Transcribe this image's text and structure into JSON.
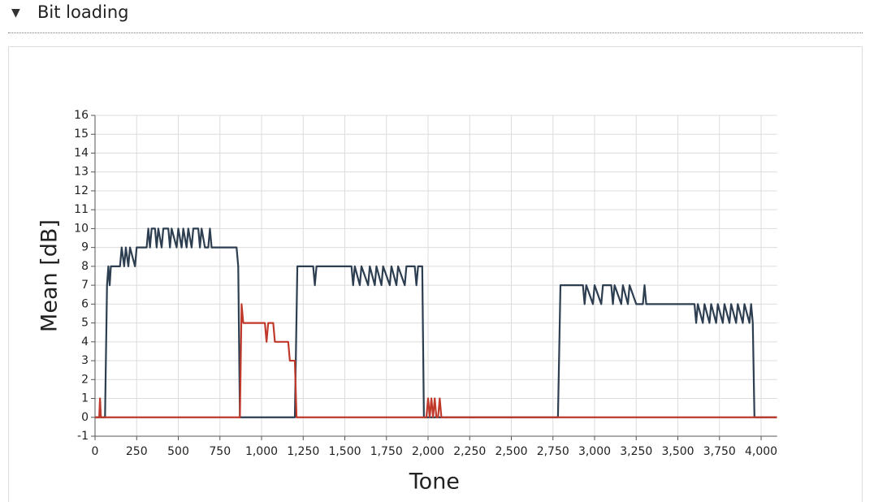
{
  "header": {
    "title": "Bit loading"
  },
  "chart_data": {
    "type": "line",
    "x_label": "Tone",
    "y_label": "Mean [dB]",
    "xlim": [
      0,
      4096
    ],
    "ylim": [
      -1,
      16
    ],
    "grid": true,
    "xticks": [
      0,
      250,
      500,
      750,
      {
        "value": 1000,
        "label": "1,000"
      },
      {
        "value": 1250,
        "label": "1,250"
      },
      {
        "value": 1500,
        "label": "1,500"
      },
      {
        "value": 1750,
        "label": "1,750"
      },
      {
        "value": 2000,
        "label": "2,000"
      },
      {
        "value": 2250,
        "label": "2,250"
      },
      {
        "value": 2500,
        "label": "2,500"
      },
      {
        "value": 2750,
        "label": "2,750"
      },
      {
        "value": 3000,
        "label": "3,000"
      },
      {
        "value": 3250,
        "label": "3,250"
      },
      {
        "value": 3500,
        "label": "3,500"
      },
      {
        "value": 3750,
        "label": "3,750"
      },
      {
        "value": 4000,
        "label": "4,000"
      }
    ],
    "yticks": [
      -1,
      0,
      1,
      2,
      3,
      4,
      5,
      6,
      7,
      8,
      9,
      10,
      11,
      12,
      13,
      14,
      15,
      16
    ],
    "series": [
      {
        "color": "#2c3e50",
        "x": [
          0,
          60,
          72,
          80,
          88,
          95,
          150,
          160,
          175,
          185,
          200,
          210,
          240,
          250,
          310,
          320,
          330,
          340,
          360,
          370,
          380,
          400,
          410,
          440,
          450,
          460,
          490,
          500,
          520,
          530,
          550,
          560,
          580,
          590,
          620,
          630,
          640,
          660,
          680,
          690,
          700,
          850,
          860,
          870,
          1200,
          1215,
          1310,
          1320,
          1330,
          1540,
          1550,
          1560,
          1590,
          1600,
          1640,
          1650,
          1680,
          1690,
          1720,
          1730,
          1770,
          1780,
          1810,
          1820,
          1860,
          1870,
          1920,
          1930,
          1940,
          1965,
          1975,
          2780,
          2795,
          2930,
          2940,
          2950,
          2990,
          3000,
          3040,
          3050,
          3100,
          3110,
          3120,
          3160,
          3170,
          3200,
          3210,
          3250,
          3290,
          3300,
          3310,
          3600,
          3610,
          3620,
          3650,
          3660,
          3690,
          3700,
          3730,
          3740,
          3770,
          3780,
          3810,
          3820,
          3850,
          3860,
          3890,
          3900,
          3930,
          3940,
          3950,
          3960,
          4095
        ],
        "values": [
          0,
          0,
          7,
          8,
          7,
          8,
          8,
          9,
          8,
          9,
          8,
          9,
          8,
          9,
          9,
          10,
          9,
          10,
          10,
          9,
          10,
          9,
          10,
          10,
          9,
          10,
          9,
          10,
          9,
          10,
          9,
          10,
          9,
          10,
          10,
          9,
          10,
          9,
          9,
          10,
          9,
          9,
          8,
          0,
          0,
          8,
          8,
          7,
          8,
          8,
          7,
          8,
          7,
          8,
          7,
          8,
          7,
          8,
          7,
          8,
          7,
          8,
          7,
          8,
          7,
          8,
          8,
          7,
          8,
          8,
          0,
          0,
          7,
          7,
          6,
          7,
          6,
          7,
          6,
          7,
          7,
          6,
          7,
          6,
          7,
          6,
          7,
          6,
          6,
          7,
          6,
          6,
          5,
          6,
          5,
          6,
          5,
          6,
          5,
          6,
          5,
          6,
          5,
          6,
          5,
          6,
          5,
          6,
          5,
          6,
          5,
          0,
          0
        ]
      },
      {
        "color": "#c0392b",
        "x": [
          0,
          25,
          30,
          35,
          870,
          880,
          890,
          1020,
          1030,
          1040,
          1070,
          1080,
          1160,
          1170,
          1200,
          1210,
          1990,
          2000,
          2010,
          2020,
          2030,
          2040,
          2050,
          2060,
          2070,
          2080,
          4095
        ],
        "values": [
          0,
          0,
          1,
          0,
          0,
          6,
          5,
          5,
          4,
          5,
          5,
          4,
          4,
          3,
          3,
          0,
          0,
          1,
          0,
          1,
          0,
          1,
          0,
          0,
          1,
          0,
          0
        ]
      }
    ]
  }
}
